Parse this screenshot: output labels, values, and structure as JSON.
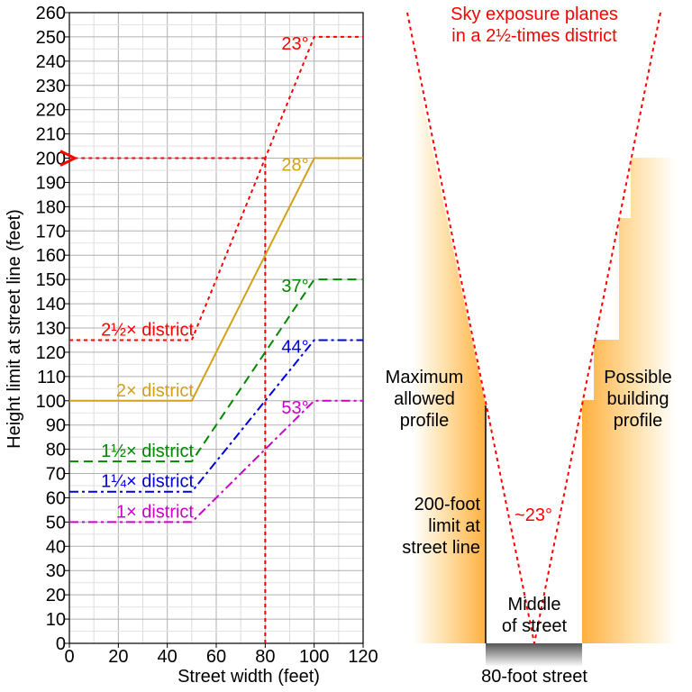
{
  "chart_data": {
    "type": "line",
    "xlabel": "Street width (feet)",
    "ylabel": "Height limit at street line (feet)",
    "xlim": [
      0,
      120
    ],
    "ylim": [
      0,
      260
    ],
    "x_ticks": [
      0,
      20,
      40,
      60,
      80,
      100,
      120
    ],
    "y_ticks": [
      0,
      10,
      20,
      30,
      40,
      50,
      60,
      70,
      80,
      90,
      100,
      110,
      120,
      130,
      140,
      150,
      160,
      170,
      180,
      190,
      200,
      210,
      220,
      230,
      240,
      250,
      260
    ],
    "grid": true,
    "series": [
      {
        "name": "2½× district",
        "color": "#ff0000",
        "dash": "dotted",
        "x": [
          0,
          50,
          100,
          120
        ],
        "y": [
          125,
          125,
          250,
          250
        ],
        "angle": "23°"
      },
      {
        "name": "2× district",
        "color": "#d4a017",
        "dash": "solid",
        "x": [
          0,
          50,
          100,
          120
        ],
        "y": [
          100,
          100,
          200,
          200
        ],
        "angle": "28°"
      },
      {
        "name": "1½× district",
        "color": "#008800",
        "dash": "dashed",
        "x": [
          0,
          50,
          100,
          120
        ],
        "y": [
          75,
          75,
          150,
          150
        ],
        "angle": "37°"
      },
      {
        "name": "1¼× district",
        "color": "#0000dd",
        "dash": "dashdot",
        "x": [
          0,
          50,
          100,
          120
        ],
        "y": [
          62.5,
          62.5,
          125,
          125
        ],
        "angle": "44°"
      },
      {
        "name": "1× district",
        "color": "#cc00cc",
        "dash": "dashdot",
        "x": [
          0,
          50,
          100,
          120
        ],
        "y": [
          50,
          50,
          100,
          100
        ],
        "angle": "53°"
      }
    ],
    "reference": {
      "x": 80,
      "y": 200,
      "color": "#ff0000"
    }
  },
  "diagram": {
    "title_line1": "Sky exposure planes",
    "title_line2": "in a 2½-times district",
    "left_label": [
      "Maximum",
      "allowed",
      "profile"
    ],
    "right_label": [
      "Possible",
      "building",
      "profile"
    ],
    "limit_label": [
      "200-foot",
      "limit at",
      "street line"
    ],
    "angle_label": "~23°",
    "middle_label": [
      "Middle",
      "of street"
    ],
    "street_label": "80-foot street"
  }
}
